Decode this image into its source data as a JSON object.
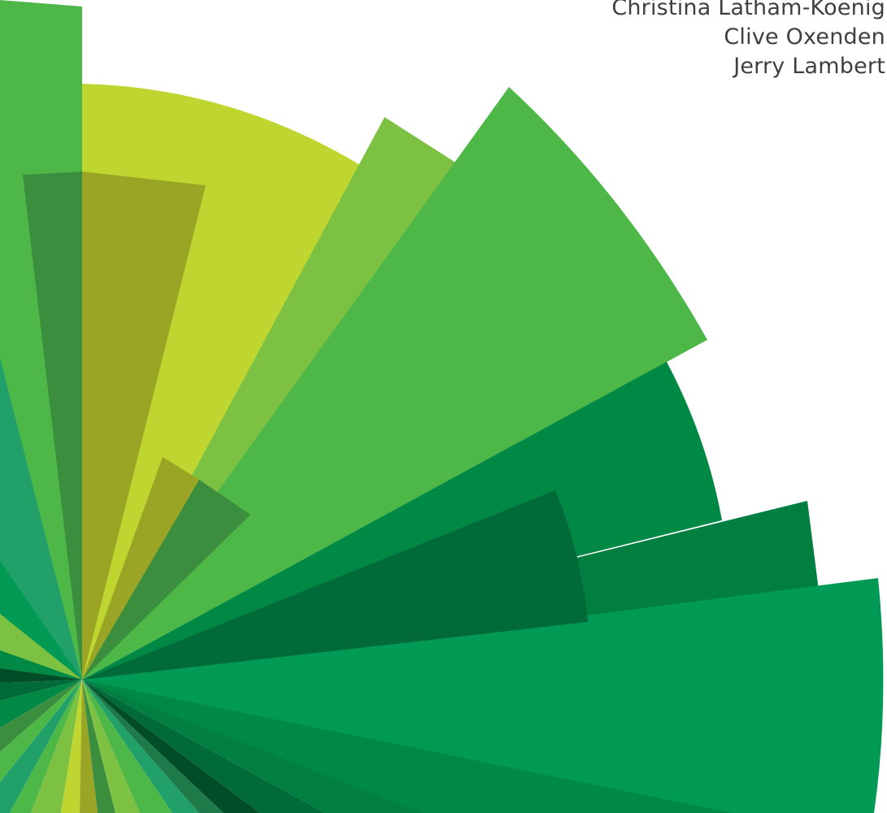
{
  "authors": [
    "Christina Latham-Koenig",
    "Clive Oxenden",
    "Jerry Lambert"
  ],
  "artwork": {
    "icon": "radial-burst-graphic",
    "colors": {
      "lime": "#BED62F",
      "light_green": "#7DC143",
      "green": "#4DB848",
      "emerald": "#009A54",
      "forest": "#008845",
      "dark_green": "#006B38",
      "olive": "#9AA525",
      "olive_green": "#3C8E3F",
      "teal": "#22A06A",
      "deep": "#004D28"
    }
  }
}
